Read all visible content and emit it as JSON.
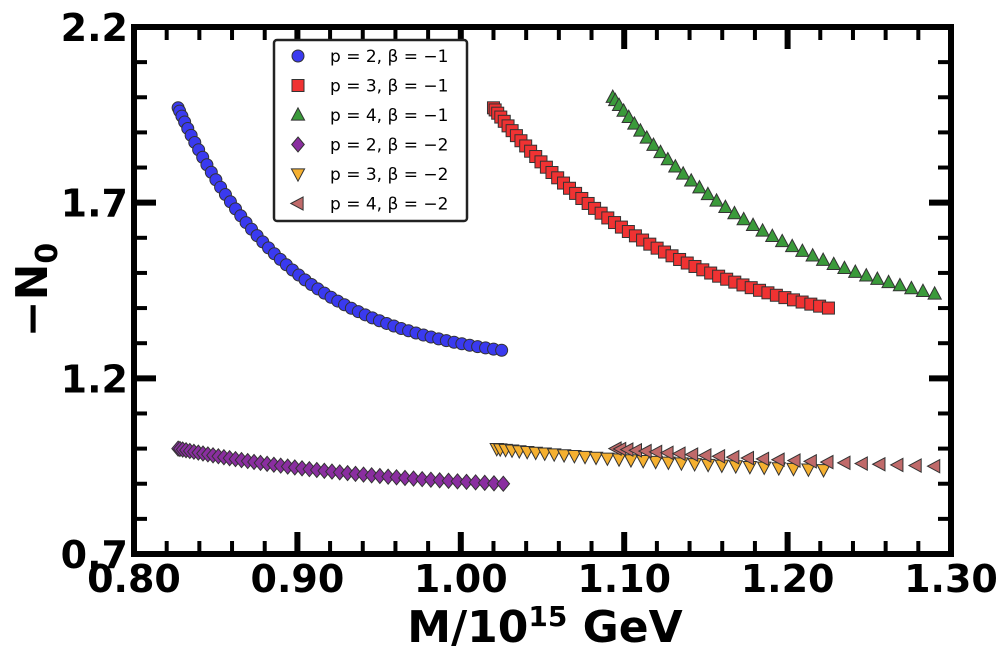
{
  "chart_data": {
    "type": "scatter",
    "xlabel_main": "M/10",
    "xlabel_sup": "15",
    "xlabel_unit": " GeV",
    "ylabel_main": "−N",
    "ylabel_sub": "0",
    "xlim": [
      0.8,
      1.3
    ],
    "ylim": [
      0.7,
      2.2
    ],
    "xticks": [
      0.8,
      0.9,
      1.0,
      1.1,
      1.2,
      1.3
    ],
    "xtick_labels": [
      "0.80",
      "0.90",
      "1.00",
      "1.10",
      "1.20",
      "1.30"
    ],
    "yticks": [
      0.7,
      1.2,
      1.7,
      2.2
    ],
    "ytick_labels": [
      "0.7",
      "1.2",
      "1.7",
      "2.2"
    ],
    "grid": false,
    "legend_position": "top-left",
    "series": [
      {
        "name": "p = 2, β = −1",
        "p": "2",
        "beta": "−1",
        "marker": "circle",
        "color": "#3a3af0",
        "x_start": 0.827,
        "x_end": 1.025,
        "y_start": 1.97,
        "y_end": 1.28,
        "curve": 2.8,
        "n": 55
      },
      {
        "name": "p = 3, β = −1",
        "p": "3",
        "beta": "−1",
        "marker": "square",
        "color": "#f03232",
        "x_start": 1.02,
        "x_end": 1.225,
        "y_start": 1.97,
        "y_end": 1.4,
        "curve": 1.8,
        "n": 52
      },
      {
        "name": "p = 4, β = −1",
        "p": "4",
        "beta": "−1",
        "marker": "triangle-up",
        "color": "#3a9a3a",
        "x_start": 1.093,
        "x_end": 1.29,
        "y_start": 2.0,
        "y_end": 1.44,
        "curve": 1.8,
        "n": 38
      },
      {
        "name": "p = 2, β = −2",
        "p": "2",
        "beta": "−2",
        "marker": "diamond",
        "color": "#8a2ea0",
        "x_start": 0.827,
        "x_end": 1.026,
        "y_start": 1.0,
        "y_end": 0.9,
        "curve": 1.5,
        "n": 48
      },
      {
        "name": "p = 3, β = −2",
        "p": "3",
        "beta": "−2",
        "marker": "triangle-down",
        "color": "#f5b030",
        "x_start": 1.022,
        "x_end": 1.222,
        "y_start": 1.0,
        "y_end": 0.94,
        "curve": 1.0,
        "n": 30
      },
      {
        "name": "p = 4, β = −2",
        "p": "4",
        "beta": "−2",
        "marker": "triangle-left",
        "color": "#c06a6a",
        "x_start": 1.095,
        "x_end": 1.29,
        "y_start": 1.0,
        "y_end": 0.95,
        "curve": 1.0,
        "n": 24
      }
    ]
  }
}
